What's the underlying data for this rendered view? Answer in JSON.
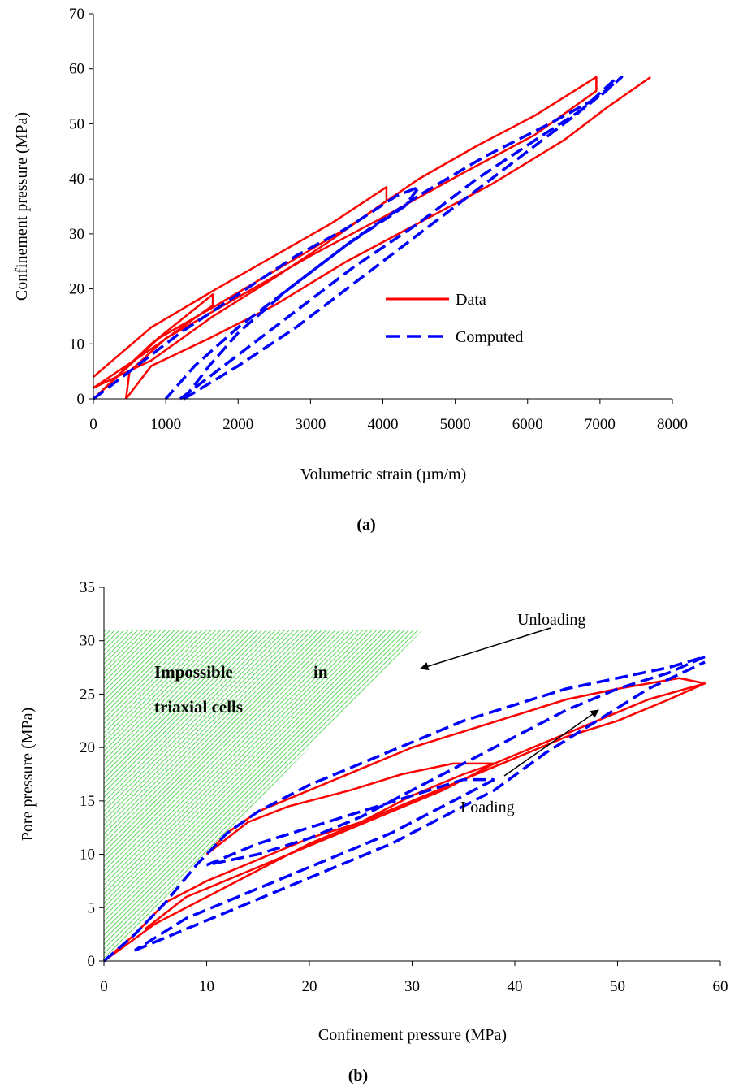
{
  "chart_data": [
    {
      "type": "line",
      "panel_label": "(a)",
      "xlabel": "Volumetric strain (µm/m)",
      "ylabel": "Confinement pressure (MPa)",
      "xlim": [
        0,
        8000
      ],
      "ylim": [
        0,
        70
      ],
      "xticks": [
        0,
        1000,
        2000,
        3000,
        4000,
        5000,
        6000,
        7000,
        8000
      ],
      "yticks": [
        0,
        10,
        20,
        30,
        40,
        50,
        60,
        70
      ],
      "grid": false,
      "legend_position": "center-right",
      "series": [
        {
          "name": "Data",
          "color": "#ff0000",
          "style": "solid",
          "segments": [
            [
              [
                0,
                4
              ],
              [
                800,
                13
              ],
              [
                1700,
                20
              ],
              [
                2500,
                26
              ],
              [
                3300,
                32
              ],
              [
                4050,
                38.5
              ],
              [
                4050,
                36
              ],
              [
                3300,
                29
              ],
              [
                2500,
                22
              ],
              [
                1650,
                15
              ],
              [
                800,
                7
              ],
              [
                0,
                2
              ]
            ],
            [
              [
                0,
                2
              ],
              [
                900,
                10
              ],
              [
                1650,
                17
              ],
              [
                1650,
                19
              ],
              [
                800,
                10
              ],
              [
                0,
                0
              ]
            ],
            [
              [
                0,
                0
              ],
              [
                900,
                11
              ],
              [
                1700,
                17
              ],
              [
                2600,
                24
              ],
              [
                3500,
                31
              ],
              [
                4500,
                40
              ],
              [
                5300,
                46
              ],
              [
                6100,
                51.5
              ],
              [
                6950,
                58.5
              ],
              [
                6950,
                56
              ],
              [
                6100,
                48
              ],
              [
                5100,
                41
              ],
              [
                4000,
                33
              ],
              [
                3000,
                26
              ],
              [
                2000,
                18.5
              ],
              [
                1000,
                11
              ],
              [
                500,
                5
              ],
              [
                450,
                0
              ]
            ],
            [
              [
                450,
                0
              ],
              [
                800,
                6
              ],
              [
                1600,
                11
              ],
              [
                2500,
                17
              ],
              [
                3500,
                25
              ],
              [
                4500,
                32
              ],
              [
                5500,
                39
              ],
              [
                6500,
                47
              ],
              [
                7100,
                53
              ],
              [
                7700,
                58.5
              ]
            ]
          ]
        },
        {
          "name": "Computed",
          "color": "#0000ff",
          "style": "dashed",
          "segments": [
            [
              [
                0,
                0
              ],
              [
                600,
                6
              ],
              [
                1200,
                12
              ],
              [
                2000,
                19
              ],
              [
                2800,
                26
              ],
              [
                3500,
                31
              ],
              [
                4200,
                37
              ],
              [
                4500,
                38.5
              ],
              [
                4300,
                35
              ],
              [
                3500,
                28
              ],
              [
                2800,
                21
              ],
              [
                2000,
                13
              ],
              [
                1400,
                6
              ],
              [
                1000,
                0
              ]
            ],
            [
              [
                1200,
                0
              ],
              [
                1800,
                6
              ],
              [
                2700,
                15
              ],
              [
                3600,
                24
              ],
              [
                4500,
                32
              ],
              [
                5300,
                40
              ],
              [
                6100,
                47
              ],
              [
                6800,
                53
              ],
              [
                7300,
                58.5
              ],
              [
                7000,
                55
              ],
              [
                6300,
                50
              ],
              [
                5400,
                44
              ],
              [
                4500,
                37
              ],
              [
                3600,
                29
              ],
              [
                2700,
                20
              ],
              [
                2000,
                12
              ],
              [
                1600,
                6
              ],
              [
                1250,
                0
              ]
            ],
            [
              [
                1250,
                0
              ],
              [
                2000,
                6
              ],
              [
                2800,
                13
              ],
              [
                3600,
                21
              ],
              [
                4400,
                29
              ],
              [
                5200,
                37
              ],
              [
                6000,
                45
              ],
              [
                6700,
                52
              ],
              [
                7200,
                58
              ]
            ]
          ]
        }
      ]
    },
    {
      "type": "line",
      "panel_label": "(b)",
      "xlabel": "Confinement pressure (MPa)",
      "ylabel": "Pore pressure (MPa)",
      "xlim": [
        0,
        60
      ],
      "ylim": [
        0,
        35
      ],
      "xticks": [
        0,
        10,
        20,
        30,
        40,
        50,
        60
      ],
      "yticks": [
        0,
        5,
        10,
        15,
        20,
        25,
        30,
        35
      ],
      "grid": false,
      "region": {
        "label_line1": "Impossible",
        "label_line1_right": "in",
        "label_line2": "triaxial cells",
        "color": "#33cc33",
        "polygon": [
          [
            0,
            0
          ],
          [
            0,
            31
          ],
          [
            31,
            31
          ]
        ]
      },
      "annotations": {
        "unloading": "Unloading",
        "loading": "Loading"
      },
      "series": [
        {
          "name": "Data",
          "color": "#ff0000",
          "style": "solid",
          "segments": [
            [
              [
                0,
                0
              ],
              [
                3,
                2.5
              ],
              [
                6,
                5.5
              ],
              [
                10,
                7.5
              ],
              [
                15,
                9.5
              ],
              [
                20,
                11.5
              ],
              [
                25,
                13
              ],
              [
                30,
                15.5
              ],
              [
                35,
                17.5
              ],
              [
                38,
                18.5
              ],
              [
                34,
                18.5
              ],
              [
                29,
                17.5
              ],
              [
                24,
                16
              ],
              [
                18,
                14.5
              ],
              [
                14,
                13
              ],
              [
                12,
                11.5
              ],
              [
                10,
                10
              ]
            ],
            [
              [
                10,
                10
              ],
              [
                12,
                12
              ],
              [
                15,
                14
              ],
              [
                20,
                16
              ],
              [
                25,
                18
              ],
              [
                30,
                20
              ],
              [
                35,
                21.5
              ],
              [
                40,
                23
              ],
              [
                45,
                24.5
              ],
              [
                50,
                25.5
              ],
              [
                56,
                26.5
              ],
              [
                58.5,
                26
              ],
              [
                55,
                24.5
              ],
              [
                50,
                22.5
              ],
              [
                45,
                21
              ],
              [
                40,
                19
              ],
              [
                35,
                17
              ],
              [
                30,
                15
              ],
              [
                25,
                13
              ],
              [
                20,
                11
              ],
              [
                15,
                8.5
              ],
              [
                10,
                6
              ],
              [
                5,
                3.5
              ],
              [
                0,
                0
              ]
            ],
            [
              [
                4,
                3
              ],
              [
                8,
                6
              ],
              [
                13,
                8
              ],
              [
                18,
                10
              ],
              [
                23,
                12
              ],
              [
                28,
                14
              ],
              [
                33,
                16
              ],
              [
                38,
                18.5
              ],
              [
                43,
                20.5
              ],
              [
                48,
                22.5
              ],
              [
                53,
                24.5
              ],
              [
                58.5,
                26
              ]
            ]
          ]
        },
        {
          "name": "Computed",
          "color": "#0000ff",
          "style": "dashed",
          "segments": [
            [
              [
                0,
                0
              ],
              [
                3,
                2.5
              ],
              [
                6,
                5.5
              ],
              [
                9,
                9
              ],
              [
                12,
                12
              ],
              [
                15,
                14
              ],
              [
                20,
                16.5
              ],
              [
                25,
                18.5
              ],
              [
                30,
                20.5
              ],
              [
                35,
                22.5
              ],
              [
                40,
                24
              ],
              [
                45,
                25.5
              ],
              [
                50,
                26.5
              ],
              [
                55,
                27.5
              ],
              [
                58.5,
                28.5
              ]
            ],
            [
              [
                58.5,
                28.5
              ],
              [
                55,
                27
              ],
              [
                50,
                25.5
              ],
              [
                45,
                23.5
              ],
              [
                40,
                21
              ],
              [
                35,
                18.5
              ],
              [
                30,
                16
              ],
              [
                25,
                13.5
              ],
              [
                20,
                11.5
              ],
              [
                15,
                10
              ],
              [
                10,
                9
              ]
            ],
            [
              [
                10,
                9
              ],
              [
                15,
                11
              ],
              [
                20,
                12.5
              ],
              [
                25,
                14
              ],
              [
                30,
                15.5
              ],
              [
                35,
                17
              ],
              [
                38,
                17
              ]
            ],
            [
              [
                38,
                17
              ],
              [
                33,
                14.5
              ],
              [
                28,
                12
              ],
              [
                23,
                10
              ],
              [
                18,
                8
              ],
              [
                13,
                6
              ],
              [
                8,
                4
              ],
              [
                3,
                1
              ]
            ],
            [
              [
                3,
                1
              ],
              [
                8,
                3
              ],
              [
                13,
                5
              ],
              [
                18,
                7
              ],
              [
                23,
                9
              ],
              [
                28,
                11
              ],
              [
                33,
                13.5
              ],
              [
                38,
                16
              ],
              [
                43,
                19.5
              ],
              [
                48,
                22.5
              ],
              [
                53,
                25.5
              ],
              [
                58.5,
                28
              ]
            ]
          ]
        }
      ]
    }
  ]
}
